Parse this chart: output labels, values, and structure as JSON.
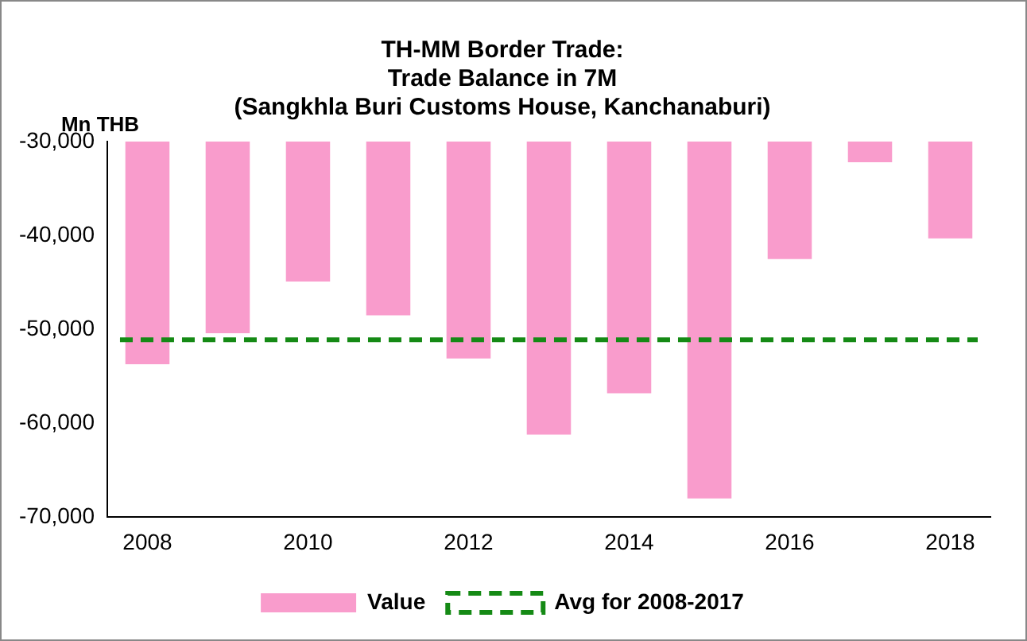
{
  "chart_data": {
    "type": "bar",
    "title": "TH-MM Border Trade:\nTrade Balance in 7M\n(Sangkhla Buri Customs House, Kanchanaburi)",
    "ylabel": "Mn THB",
    "categories": [
      "2008",
      null,
      "2010",
      null,
      "2012",
      null,
      "2014",
      null,
      "2016",
      null,
      "2018"
    ],
    "series": [
      {
        "name": "Value",
        "color": "#f99ccc",
        "values": [
          -53700,
          -50400,
          -44900,
          -48500,
          -53100,
          -61200,
          -56800,
          -68000,
          -42500,
          -32200,
          -40300
        ]
      }
    ],
    "ylim": [
      -70000,
      -30000
    ],
    "yticks": [
      {
        "value": -70000,
        "label": "-70,000"
      },
      {
        "value": -60000,
        "label": "-60,000"
      },
      {
        "value": -50000,
        "label": "-50,000"
      },
      {
        "value": -40000,
        "label": "-40,000"
      },
      {
        "value": -30000,
        "label": "-30,000"
      }
    ],
    "ref_lines": [
      {
        "axis": "y",
        "value": -51100,
        "label": "Avg for 2008-2017",
        "color": "#158a15",
        "line_style": "dashed"
      }
    ],
    "grid": false,
    "legend": "bottom"
  }
}
